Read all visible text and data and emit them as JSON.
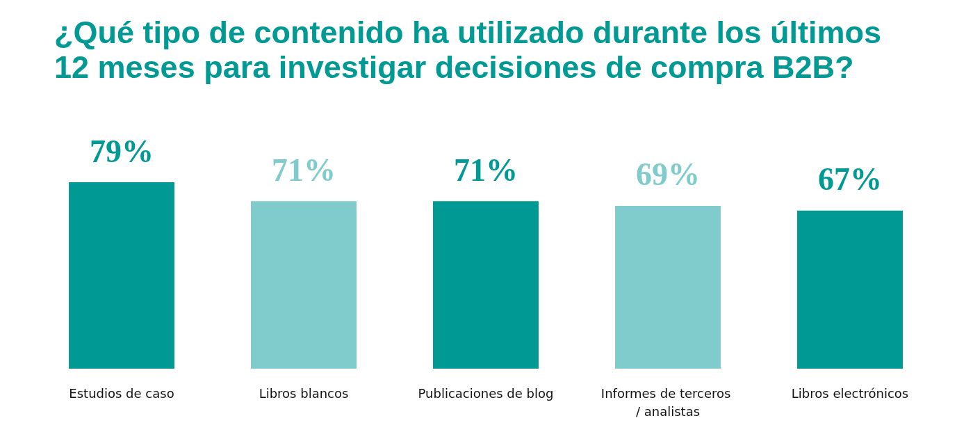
{
  "chart_data": {
    "type": "bar",
    "title": "¿Qué tipo de contenido ha utilizado durante los últimos 12 meses para investigar decisiones de compra B2B?",
    "categories": [
      "Estudios de caso",
      "Libros blancos",
      "Publicaciones de blog",
      "Informes de terceros / analistas",
      "Libros electrónicos"
    ],
    "values": [
      79,
      71,
      71,
      69,
      67
    ],
    "colors": [
      "#009994",
      "#80cccc",
      "#009994",
      "#80cccc",
      "#009994"
    ],
    "value_labels": [
      "79%",
      "71%",
      "71%",
      "69%",
      "67%"
    ],
    "tick_labels": "x"
  }
}
